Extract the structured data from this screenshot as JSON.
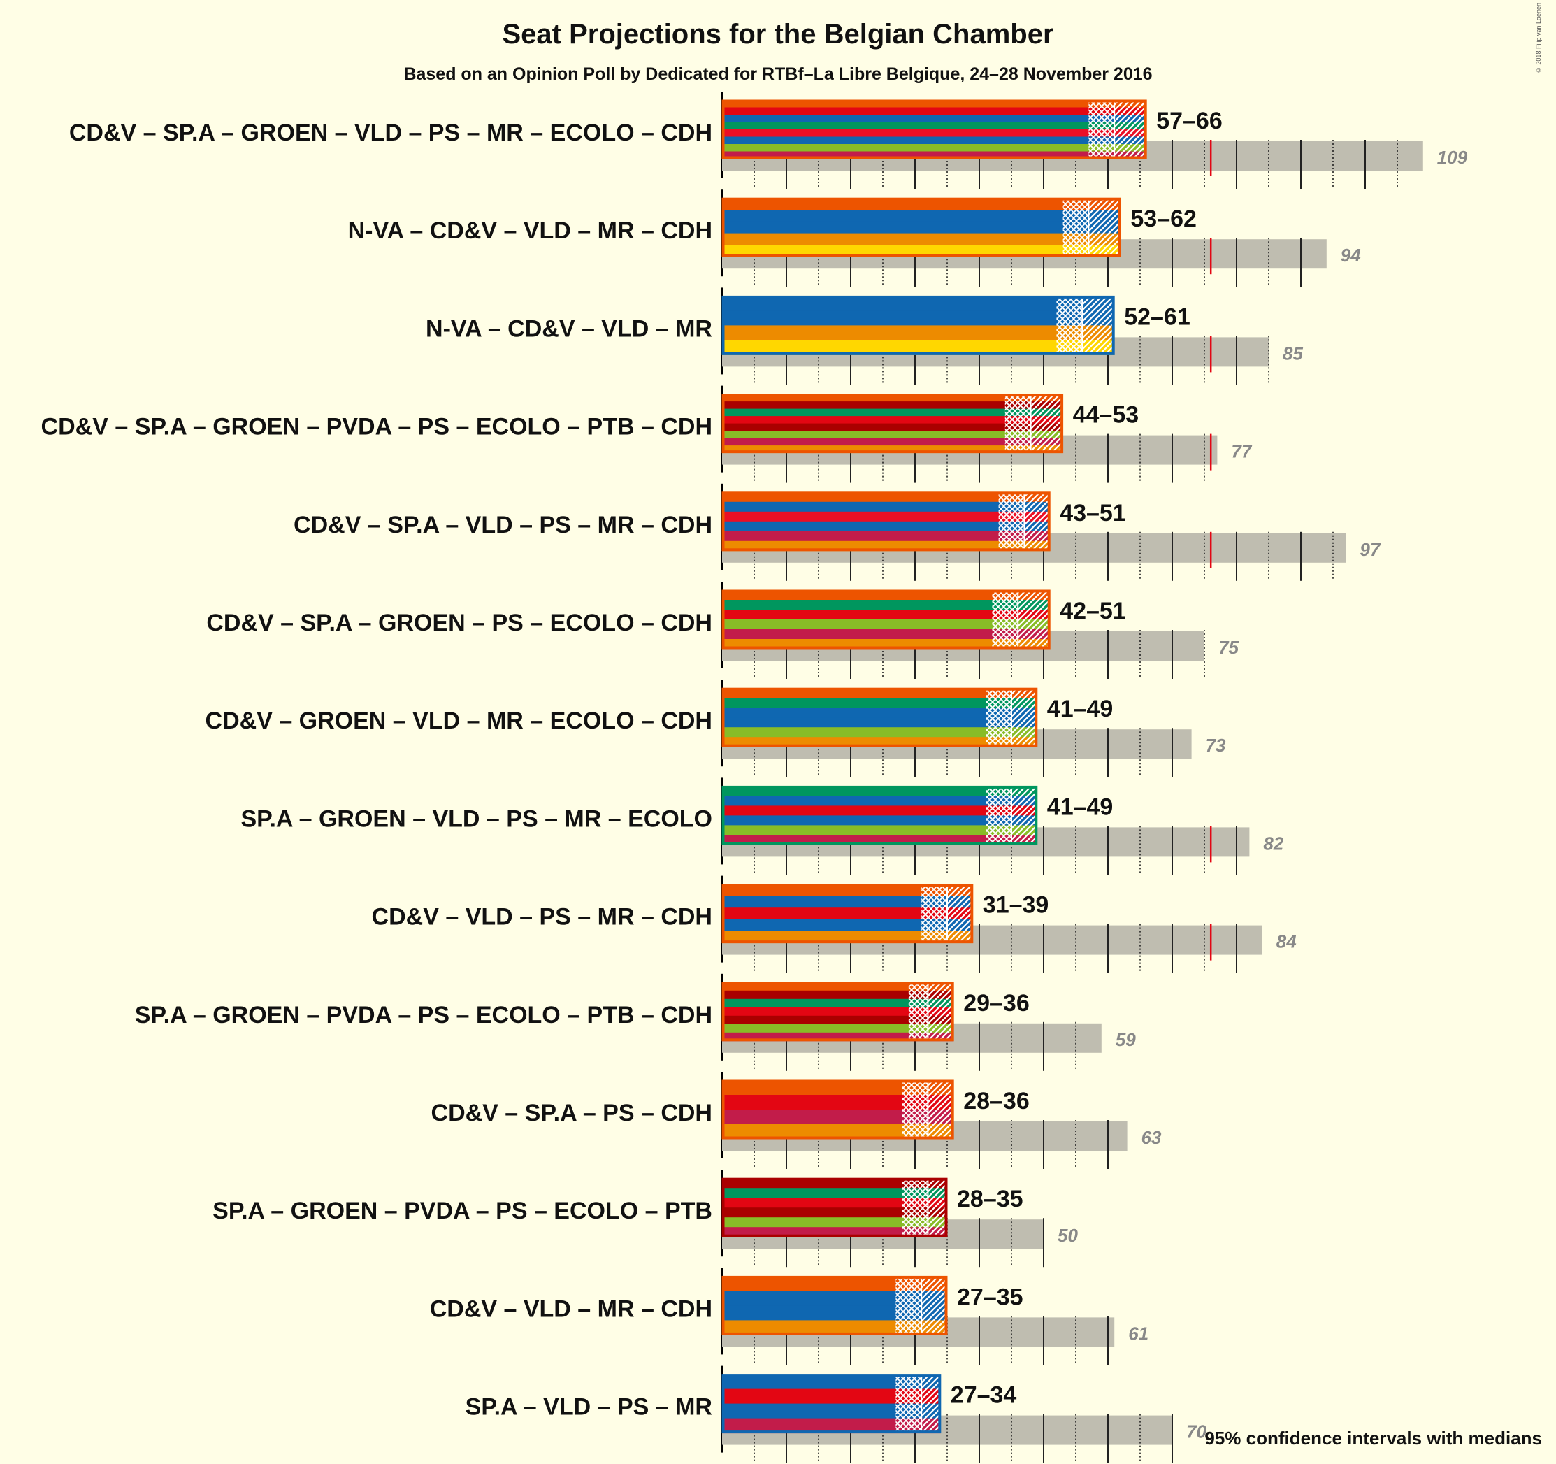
{
  "chart_data": {
    "type": "bar",
    "title": "Seat Projections for the Belgian Chamber",
    "subtitle": "Based on an Opinion Poll by Dedicated for RTBf–La Libre Belgique, 24–28 November 2016",
    "note": "95% confidence intervals with medians",
    "copyright": "© 2018 Filip van Laenen",
    "majority": 76,
    "xlim": [
      0,
      150
    ],
    "coalitions": [
      {
        "name": "CD&V – SP.A – GROEN – VLD – PS – MR – ECOLO – CDH",
        "low": 57,
        "median": 61,
        "high": 66,
        "range_label": "57–66",
        "seats": 109,
        "seats_label": "109",
        "colors": [
          "#ED5400",
          "#E30613",
          "#0F67B1",
          "#00965E",
          "#EB0F25",
          "#0F67B1",
          "#88BC27",
          "#C21C4A"
        ]
      },
      {
        "name": "N-VA – CD&V – VLD – MR – CDH",
        "low": 53,
        "median": 57,
        "high": 62,
        "range_label": "53–62",
        "seats": 94,
        "seats_label": "94",
        "colors": [
          "#ED5400",
          "#0F67B1",
          "#0F67B1",
          "#ED8B00",
          "#FFD700"
        ]
      },
      {
        "name": "N-VA – CD&V – VLD – MR",
        "low": 52,
        "median": 56,
        "high": 61,
        "range_label": "52–61",
        "seats": 85,
        "seats_label": "85",
        "colors": [
          "#0F67B1",
          "#0F67B1",
          "#ED8B00",
          "#FFD700"
        ]
      },
      {
        "name": "CD&V – SP.A – GROEN – PVDA – PS – ECOLO – PTB – CDH",
        "low": 44,
        "median": 48,
        "high": 53,
        "range_label": "44–53",
        "seats": 77,
        "seats_label": "77",
        "colors": [
          "#ED5400",
          "#AA0000",
          "#00965E",
          "#E30613",
          "#AA0000",
          "#88BC27",
          "#C21C4A",
          "#ED8B00"
        ]
      },
      {
        "name": "CD&V – SP.A – VLD – PS – MR – CDH",
        "low": 43,
        "median": 47,
        "high": 51,
        "range_label": "43–51",
        "seats": 97,
        "seats_label": "97",
        "colors": [
          "#ED5400",
          "#0F67B1",
          "#EB0F25",
          "#0F67B1",
          "#C21C4A",
          "#ED8B00"
        ]
      },
      {
        "name": "CD&V – SP.A – GROEN – PS – ECOLO – CDH",
        "low": 42,
        "median": 46,
        "high": 51,
        "range_label": "42–51",
        "seats": 75,
        "seats_label": "75",
        "colors": [
          "#ED5400",
          "#00965E",
          "#E30613",
          "#88BC27",
          "#C21C4A",
          "#ED8B00"
        ]
      },
      {
        "name": "CD&V – GROEN – VLD – MR – ECOLO – CDH",
        "low": 41,
        "median": 45,
        "high": 49,
        "range_label": "41–49",
        "seats": 73,
        "seats_label": "73",
        "colors": [
          "#ED5400",
          "#00965E",
          "#0F67B1",
          "#0F67B1",
          "#88BC27",
          "#ED8B00"
        ]
      },
      {
        "name": "SP.A – GROEN – VLD – PS – MR – ECOLO",
        "low": 41,
        "median": 45,
        "high": 49,
        "range_label": "41–49",
        "seats": 82,
        "seats_label": "82",
        "colors": [
          "#00965E",
          "#0F67B1",
          "#E30613",
          "#0F67B1",
          "#88BC27",
          "#C21C4A"
        ]
      },
      {
        "name": "CD&V – VLD – PS – MR – CDH",
        "low": 31,
        "median": 35,
        "high": 39,
        "range_label": "31–39",
        "seats": 84,
        "seats_label": "84",
        "colors": [
          "#ED5400",
          "#0F67B1",
          "#E30613",
          "#0F67B1",
          "#ED8B00"
        ]
      },
      {
        "name": "SP.A – GROEN – PVDA – PS – ECOLO – PTB – CDH",
        "low": 29,
        "median": 32,
        "high": 36,
        "range_label": "29–36",
        "seats": 59,
        "seats_label": "59",
        "colors": [
          "#ED5400",
          "#AA0000",
          "#00965E",
          "#E30613",
          "#AA0000",
          "#88BC27",
          "#C21C4A"
        ]
      },
      {
        "name": "CD&V – SP.A – PS – CDH",
        "low": 28,
        "median": 32,
        "high": 36,
        "range_label": "28–36",
        "seats": 63,
        "seats_label": "63",
        "colors": [
          "#ED5400",
          "#E30613",
          "#C21C4A",
          "#ED8B00"
        ]
      },
      {
        "name": "SP.A – GROEN – PVDA – PS – ECOLO – PTB",
        "low": 28,
        "median": 32,
        "high": 35,
        "range_label": "28–35",
        "seats": 50,
        "seats_label": "50",
        "colors": [
          "#AA0000",
          "#00965E",
          "#E30613",
          "#AA0000",
          "#88BC27",
          "#C21C4A"
        ]
      },
      {
        "name": "CD&V – VLD – MR – CDH",
        "low": 27,
        "median": 31,
        "high": 35,
        "range_label": "27–35",
        "seats": 61,
        "seats_label": "61",
        "colors": [
          "#ED5400",
          "#0F67B1",
          "#0F67B1",
          "#ED8B00"
        ]
      },
      {
        "name": "SP.A – VLD – PS – MR",
        "low": 27,
        "median": 31,
        "high": 34,
        "range_label": "27–34",
        "seats": 70,
        "seats_label": "70",
        "colors": [
          "#0F67B1",
          "#E30613",
          "#0F67B1",
          "#C21C4A"
        ]
      }
    ]
  }
}
